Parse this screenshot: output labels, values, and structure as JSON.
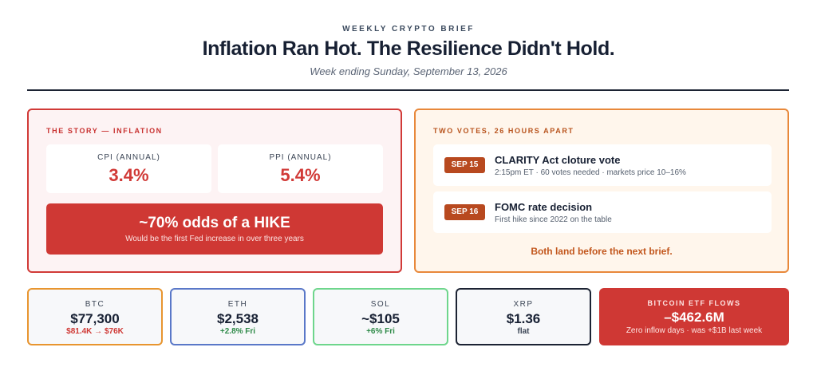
{
  "header": {
    "kicker": "WEEKLY CRYPTO BRIEF",
    "headline": "Inflation Ran Hot. The Resilience Didn't Hold.",
    "dateline": "Week ending Sunday, September 13, 2026"
  },
  "story": {
    "label": "THE STORY — INFLATION",
    "stats": [
      {
        "label": "CPI (ANNUAL)",
        "value": "3.4%"
      },
      {
        "label": "PPI (ANNUAL)",
        "value": "5.4%"
      }
    ],
    "hike": {
      "title": "~70% odds of a HIKE",
      "subtitle": "Would be the first Fed increase in over three years"
    }
  },
  "votes": {
    "label": "TWO VOTES, 26 HOURS APART",
    "items": [
      {
        "date": "SEP 15",
        "title": "CLARITY Act cloture vote",
        "detail": "2:15pm ET · 60 votes needed · markets price 10–16%"
      },
      {
        "date": "SEP 16",
        "title": "FOMC rate decision",
        "detail": "First hike since 2022 on the table"
      }
    ],
    "footer": "Both land before the next brief."
  },
  "tickers": [
    {
      "symbol": "BTC",
      "price": "$77,300",
      "change": "$81.4K → $76K",
      "border": "#e8952f",
      "change_color": "#cf3834"
    },
    {
      "symbol": "ETH",
      "price": "$2,538",
      "change": "+2.8% Fri",
      "border": "#5a78c8",
      "change_color": "#2e8a48"
    },
    {
      "symbol": "SOL",
      "price": "~$105",
      "change": "+6% Fri",
      "border": "#6ed68c",
      "change_color": "#2e8a48"
    },
    {
      "symbol": "XRP",
      "price": "$1.36",
      "change": "flat",
      "border": "#1c2333",
      "change_color": "#3b4555"
    }
  ],
  "etf": {
    "label": "BITCOIN ETF FLOWS",
    "value": "–$462.6M",
    "subtitle": "Zero inflow days · was +$1B last week"
  },
  "colors": {
    "accent_red": "#cf3834",
    "accent_orange": "#e8883a",
    "text_dark": "#172033"
  }
}
